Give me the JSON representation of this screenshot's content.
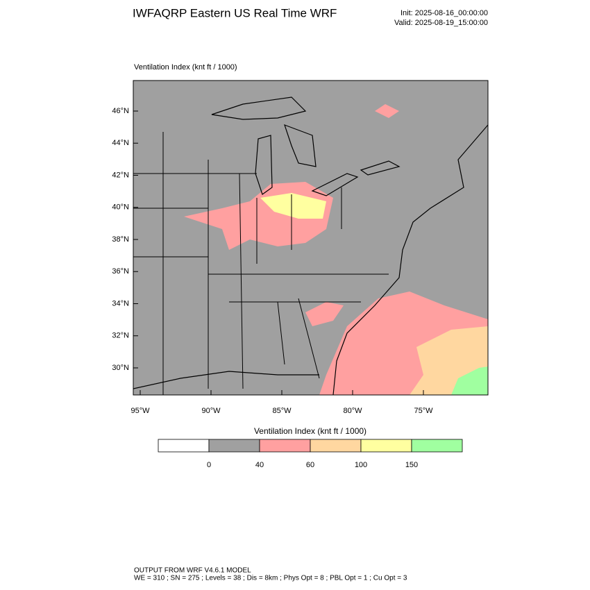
{
  "header": {
    "title": "IWFAQRP Eastern US Real Time WRF",
    "init": "Init: 2025-08-16_00:00:00",
    "valid": "Valid: 2025-08-19_15:00:00"
  },
  "map": {
    "label": "Ventilation Index   (knt ft / 1000)",
    "lat_labels": [
      "46°N",
      "44°N",
      "42°N",
      "40°N",
      "38°N",
      "36°N",
      "34°N",
      "32°N",
      "30°N"
    ],
    "lon_labels": [
      "95°W",
      "90°W",
      "85°W",
      "80°W",
      "75°W"
    ]
  },
  "colorbar": {
    "title": "Ventilation Index  (knt ft / 1000)",
    "colors": [
      "#ffffff",
      "#a0a0a0",
      "#ffa0a0",
      "#ffd7a0",
      "#ffffa0",
      "#a0ffa0"
    ],
    "ticks": [
      0,
      40,
      60,
      100,
      150
    ]
  },
  "footer": {
    "line1": "OUTPUT FROM WRF V4.6.1 MODEL",
    "line2": "WE = 310 ; SN = 275 ; Levels = 38 ; Dis = 8km ; Phys Opt = 8 ; PBL Opt = 1 ; Cu Opt = 3"
  }
}
